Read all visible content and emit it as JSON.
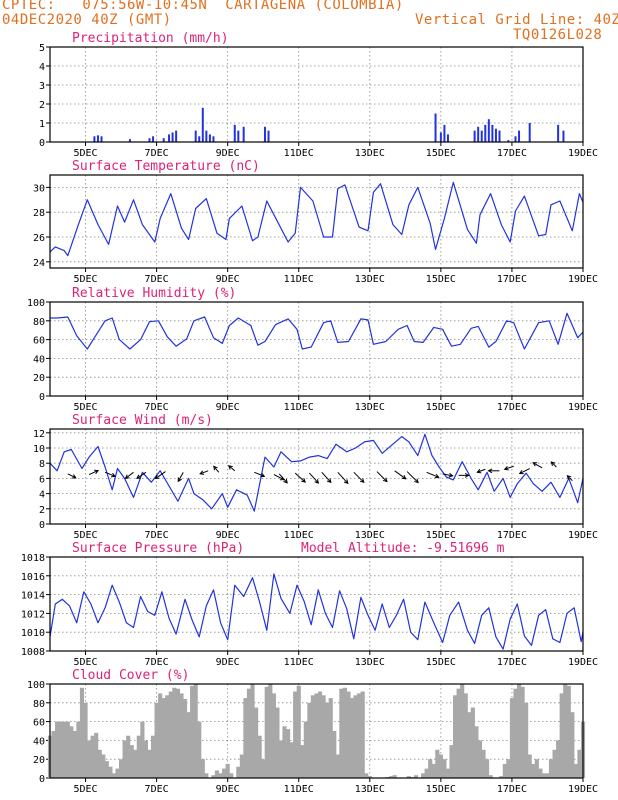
{
  "header": {
    "line1_left": "CPTEC:   075:56W-10:45N  CARTAGENA (COLOMBIA)",
    "line2_left": "04DEC2020 40Z (GMT)",
    "line2_right": "Vertical Grid Line: 40Z",
    "line3_right": "TQ0126L028"
  },
  "colors": {
    "header": "#e07020",
    "title": "#dd2277",
    "line": "#2233dd",
    "cloud": "#a8a8a8",
    "arrow": "#000000"
  },
  "x_ticks": [
    "5DEC",
    "7DEC",
    "9DEC",
    "11DEC",
    "13DEC",
    "15DEC",
    "17DEC",
    "19DEC"
  ],
  "chart_data": [
    {
      "type": "bar",
      "title": "Precipitation (mm/h)",
      "x_range_days": [
        4.0,
        19.0
      ],
      "ylim": [
        0,
        5
      ],
      "yticks": [
        0,
        1,
        2,
        3,
        4,
        5
      ],
      "bars": [
        [
          5.25,
          0.3
        ],
        [
          5.35,
          0.35
        ],
        [
          5.45,
          0.3
        ],
        [
          6.25,
          0.15
        ],
        [
          6.8,
          0.2
        ],
        [
          6.9,
          0.3
        ],
        [
          7.2,
          0.2
        ],
        [
          7.35,
          0.4
        ],
        [
          7.45,
          0.5
        ],
        [
          7.55,
          0.6
        ],
        [
          8.1,
          0.6
        ],
        [
          8.2,
          0.3
        ],
        [
          8.3,
          1.8
        ],
        [
          8.4,
          0.6
        ],
        [
          8.5,
          0.4
        ],
        [
          8.6,
          0.3
        ],
        [
          9.2,
          0.9
        ],
        [
          9.3,
          0.6
        ],
        [
          9.45,
          0.8
        ],
        [
          10.05,
          0.8
        ],
        [
          10.15,
          0.6
        ],
        [
          14.85,
          1.5
        ],
        [
          15.0,
          0.5
        ],
        [
          15.1,
          0.9
        ],
        [
          15.2,
          0.4
        ],
        [
          15.95,
          0.6
        ],
        [
          16.05,
          0.8
        ],
        [
          16.15,
          0.6
        ],
        [
          16.25,
          0.9
        ],
        [
          16.35,
          1.2
        ],
        [
          16.45,
          0.9
        ],
        [
          16.55,
          0.7
        ],
        [
          16.65,
          0.6
        ],
        [
          16.9,
          0.1
        ],
        [
          17.1,
          0.3
        ],
        [
          17.2,
          0.6
        ],
        [
          17.5,
          1.0
        ],
        [
          18.3,
          0.9
        ],
        [
          18.45,
          0.6
        ]
      ]
    },
    {
      "type": "line",
      "title": "Surface Temperature (nC)",
      "x_range_days": [
        4.0,
        19.0
      ],
      "ylim": [
        23.5,
        31
      ],
      "yticks": [
        24,
        26,
        28,
        30
      ],
      "x": [
        4.0,
        4.15,
        4.4,
        4.5,
        4.8,
        5.05,
        5.35,
        5.65,
        5.9,
        6.1,
        6.35,
        6.6,
        6.95,
        7.1,
        7.4,
        7.7,
        7.9,
        8.1,
        8.4,
        8.7,
        8.95,
        9.05,
        9.4,
        9.7,
        9.85,
        10.1,
        10.3,
        10.7,
        10.9,
        11.05,
        11.4,
        11.7,
        11.95,
        12.1,
        12.3,
        12.7,
        12.95,
        13.1,
        13.3,
        13.65,
        13.9,
        14.1,
        14.35,
        14.7,
        14.85,
        15.1,
        15.35,
        15.75,
        16.0,
        16.1,
        16.4,
        16.7,
        16.95,
        17.1,
        17.35,
        17.75,
        17.95,
        18.1,
        18.35,
        18.7,
        18.9,
        19.0
      ],
      "y": [
        24.8,
        25.2,
        24.9,
        24.5,
        27.0,
        29.0,
        27.0,
        25.4,
        28.5,
        27.2,
        29.0,
        27.0,
        25.6,
        27.5,
        29.5,
        26.7,
        25.8,
        28.3,
        29.1,
        26.3,
        25.8,
        27.5,
        28.5,
        25.7,
        26.0,
        28.9,
        27.8,
        25.6,
        26.3,
        30.0,
        28.9,
        26.0,
        26.0,
        29.9,
        30.2,
        26.8,
        26.5,
        29.6,
        30.3,
        27.0,
        26.2,
        28.6,
        30.0,
        27.1,
        25.0,
        27.5,
        30.4,
        26.6,
        25.5,
        27.8,
        29.5,
        27.0,
        25.6,
        28.1,
        29.3,
        26.1,
        26.2,
        28.6,
        28.9,
        26.5,
        29.5,
        28.8
      ]
    },
    {
      "type": "line",
      "title": "Relative Humidity (%)",
      "x_range_days": [
        4.0,
        19.0
      ],
      "ylim": [
        0,
        100
      ],
      "yticks": [
        0,
        20,
        40,
        60,
        80,
        100
      ],
      "x": [
        4.0,
        4.2,
        4.5,
        4.75,
        5.05,
        5.25,
        5.55,
        5.75,
        5.95,
        6.25,
        6.55,
        6.8,
        7.05,
        7.3,
        7.55,
        7.85,
        8.05,
        8.35,
        8.6,
        8.85,
        9.05,
        9.3,
        9.65,
        9.85,
        10.05,
        10.35,
        10.7,
        10.95,
        11.1,
        11.35,
        11.7,
        11.9,
        12.1,
        12.4,
        12.75,
        12.95,
        13.1,
        13.45,
        13.8,
        14.05,
        14.25,
        14.5,
        14.8,
        15.05,
        15.3,
        15.55,
        15.85,
        16.05,
        16.35,
        16.55,
        16.85,
        17.05,
        17.35,
        17.75,
        18.05,
        18.3,
        18.55,
        18.85,
        19.0
      ],
      "y": [
        83,
        83,
        84,
        64,
        50,
        62,
        80,
        83,
        60,
        50,
        60,
        79,
        80,
        63,
        53,
        61,
        80,
        84,
        62,
        56,
        75,
        83,
        75,
        54,
        58,
        76,
        82,
        71,
        50,
        52,
        78,
        80,
        57,
        58,
        82,
        81,
        55,
        58,
        71,
        75,
        58,
        57,
        73,
        71,
        53,
        55,
        72,
        74,
        52,
        58,
        80,
        78,
        50,
        78,
        80,
        55,
        88,
        62,
        68
      ]
    },
    {
      "type": "line",
      "title": "Surface Wind (m/s)",
      "x_range_days": [
        4.0,
        19.0
      ],
      "ylim": [
        0,
        12.5
      ],
      "yticks": [
        0,
        2,
        4,
        6,
        8,
        10,
        12
      ],
      "x": [
        4.0,
        4.2,
        4.4,
        4.6,
        4.9,
        5.1,
        5.35,
        5.55,
        5.75,
        5.9,
        6.1,
        6.35,
        6.6,
        6.85,
        7.1,
        7.35,
        7.6,
        7.9,
        8.05,
        8.3,
        8.55,
        8.85,
        9.0,
        9.25,
        9.55,
        9.75,
        10.05,
        10.3,
        10.5,
        10.8,
        11.05,
        11.3,
        11.55,
        11.8,
        12.05,
        12.35,
        12.6,
        12.85,
        13.1,
        13.35,
        13.6,
        13.9,
        14.1,
        14.35,
        14.55,
        14.75,
        14.95,
        15.15,
        15.35,
        15.6,
        15.85,
        16.05,
        16.3,
        16.5,
        16.75,
        16.95,
        17.15,
        17.4,
        17.6,
        17.85,
        18.1,
        18.35,
        18.6,
        18.85,
        19.0
      ],
      "y": [
        8.0,
        7.0,
        9.5,
        9.8,
        7.3,
        8.8,
        10.2,
        7.5,
        4.5,
        7.3,
        6.0,
        3.5,
        6.8,
        5.5,
        7.0,
        5.0,
        3.0,
        6.0,
        4.0,
        3.2,
        2.0,
        4.0,
        2.2,
        4.5,
        3.8,
        1.7,
        8.8,
        7.5,
        9.5,
        8.2,
        8.3,
        8.8,
        9.0,
        8.6,
        10.5,
        9.5,
        10.0,
        10.8,
        11.0,
        9.3,
        10.3,
        11.5,
        10.8,
        9.0,
        11.8,
        9.0,
        7.5,
        6.2,
        5.8,
        8.2,
        6.0,
        4.5,
        6.8,
        4.3,
        6.0,
        3.5,
        5.3,
        6.7,
        5.3,
        4.3,
        5.5,
        3.5,
        6.0,
        2.8,
        6.0
      ],
      "arrows": [
        [
          4.5,
          6.6,
          8,
          4
        ],
        [
          5.1,
          6.5,
          9,
          -4
        ],
        [
          5.55,
          6.8,
          10,
          4
        ],
        [
          6.35,
          6.8,
          -8,
          6
        ],
        [
          6.7,
          6.8,
          -9,
          6
        ],
        [
          7.25,
          6.9,
          -10,
          7
        ],
        [
          7.75,
          6.8,
          -5,
          9
        ],
        [
          8.45,
          7.0,
          -8,
          3
        ],
        [
          8.75,
          6.8,
          -5,
          -6
        ],
        [
          9.2,
          7.0,
          -6,
          -5
        ],
        [
          9.75,
          6.8,
          10,
          4
        ],
        [
          10.3,
          6.5,
          10,
          5
        ],
        [
          10.45,
          6.6,
          8,
          9
        ],
        [
          10.9,
          6.7,
          10,
          9
        ],
        [
          11.3,
          6.7,
          9,
          10
        ],
        [
          11.65,
          6.8,
          9,
          10
        ],
        [
          12.1,
          6.8,
          10,
          11
        ],
        [
          12.55,
          6.8,
          10,
          10
        ],
        [
          13.2,
          6.9,
          10,
          10
        ],
        [
          13.7,
          7.0,
          11,
          8
        ],
        [
          14.05,
          6.9,
          11,
          11
        ],
        [
          14.6,
          6.8,
          12,
          5
        ],
        [
          15.05,
          6.6,
          10,
          2
        ],
        [
          15.5,
          6.4,
          10,
          0
        ],
        [
          16.25,
          7.2,
          -8,
          3
        ],
        [
          16.65,
          7.0,
          -11,
          0
        ],
        [
          17.05,
          7.6,
          -9,
          3
        ],
        [
          17.5,
          7.3,
          -10,
          5
        ],
        [
          17.85,
          7.4,
          -9,
          -5
        ],
        [
          18.25,
          7.5,
          -5,
          -5
        ],
        [
          18.7,
          5.7,
          -5,
          -5
        ]
      ]
    },
    {
      "type": "line",
      "title": "Surface Pressure (hPa)",
      "annotation": "Model Altitude: -9.51696 m",
      "x_range_days": [
        4.0,
        19.0
      ],
      "ylim": [
        1008,
        1018
      ],
      "yticks": [
        1008,
        1010,
        1012,
        1014,
        1016,
        1018
      ],
      "x": [
        4.0,
        4.15,
        4.35,
        4.55,
        4.75,
        4.95,
        5.15,
        5.35,
        5.55,
        5.75,
        5.95,
        6.15,
        6.35,
        6.55,
        6.75,
        6.95,
        7.15,
        7.35,
        7.55,
        7.8,
        8.0,
        8.2,
        8.4,
        8.6,
        8.8,
        9.0,
        9.2,
        9.45,
        9.7,
        9.9,
        10.1,
        10.3,
        10.5,
        10.75,
        10.95,
        11.15,
        11.35,
        11.55,
        11.75,
        11.95,
        12.15,
        12.35,
        12.55,
        12.75,
        12.95,
        13.15,
        13.35,
        13.55,
        13.75,
        13.95,
        14.15,
        14.35,
        14.55,
        14.8,
        15.05,
        15.25,
        15.5,
        15.75,
        15.95,
        16.15,
        16.35,
        16.55,
        16.75,
        16.95,
        17.15,
        17.35,
        17.55,
        17.75,
        17.95,
        18.15,
        18.35,
        18.55,
        18.75,
        18.95,
        19.0
      ],
      "y": [
        1009.5,
        1013.0,
        1013.5,
        1012.8,
        1011.0,
        1014.3,
        1013.0,
        1011.0,
        1012.6,
        1015.0,
        1013.2,
        1011.0,
        1010.5,
        1013.8,
        1012.2,
        1011.8,
        1014.3,
        1011.5,
        1009.8,
        1013.5,
        1011.3,
        1009.5,
        1012.8,
        1014.5,
        1011.0,
        1009.2,
        1015.0,
        1013.8,
        1015.8,
        1013.2,
        1010.2,
        1016.2,
        1013.6,
        1012.0,
        1015.0,
        1013.3,
        1010.8,
        1014.5,
        1012.0,
        1010.5,
        1014.4,
        1012.5,
        1009.3,
        1013.7,
        1011.8,
        1010.2,
        1013.0,
        1010.5,
        1011.8,
        1013.5,
        1010.0,
        1009.2,
        1013.2,
        1011.0,
        1008.9,
        1011.8,
        1013.2,
        1010.2,
        1008.8,
        1011.8,
        1012.6,
        1009.5,
        1008.2,
        1011.4,
        1013.0,
        1009.6,
        1008.6,
        1011.8,
        1012.4,
        1009.3,
        1008.9,
        1012.0,
        1012.6,
        1009.0,
        1010.0
      ]
    },
    {
      "type": "area",
      "title": "Cloud Cover (%)",
      "x_range_days": [
        4.0,
        19.0
      ],
      "ylim": [
        0,
        100
      ],
      "yticks": [
        0,
        20,
        40,
        60,
        80,
        100
      ],
      "x": [
        4.0,
        4.1,
        4.2,
        4.3,
        4.4,
        4.5,
        4.6,
        4.7,
        4.8,
        4.9,
        5.0,
        5.1,
        5.2,
        5.3,
        5.4,
        5.5,
        5.6,
        5.7,
        5.8,
        5.9,
        6.0,
        6.1,
        6.2,
        6.3,
        6.4,
        6.5,
        6.6,
        6.7,
        6.8,
        6.9,
        7.0,
        7.1,
        7.2,
        7.3,
        7.4,
        7.5,
        7.6,
        7.7,
        7.8,
        7.9,
        8.0,
        8.1,
        8.2,
        8.3,
        8.4,
        8.5,
        8.6,
        8.7,
        8.8,
        8.9,
        9.0,
        9.1,
        9.2,
        9.3,
        9.4,
        9.5,
        9.6,
        9.7,
        9.8,
        9.9,
        10.0,
        10.1,
        10.2,
        10.3,
        10.4,
        10.5,
        10.6,
        10.7,
        10.8,
        10.9,
        11.0,
        11.1,
        11.2,
        11.3,
        11.4,
        11.5,
        11.6,
        11.7,
        11.8,
        11.9,
        12.0,
        12.1,
        12.2,
        12.3,
        12.4,
        12.5,
        12.6,
        12.7,
        12.8,
        12.9,
        13.0,
        13.1,
        13.2,
        13.3,
        13.4,
        13.5,
        13.6,
        13.7,
        13.8,
        13.9,
        14.0,
        14.1,
        14.2,
        14.3,
        14.4,
        14.5,
        14.6,
        14.7,
        14.8,
        14.9,
        15.0,
        15.1,
        15.2,
        15.3,
        15.4,
        15.5,
        15.6,
        15.7,
        15.8,
        15.9,
        16.0,
        16.1,
        16.2,
        16.3,
        16.4,
        16.5,
        16.6,
        16.7,
        16.8,
        16.9,
        17.0,
        17.1,
        17.2,
        17.3,
        17.4,
        17.5,
        17.6,
        17.7,
        17.8,
        17.9,
        18.0,
        18.1,
        18.2,
        18.3,
        18.4,
        18.5,
        18.6,
        18.7,
        18.8,
        18.9,
        19.0
      ],
      "y": [
        45,
        50,
        60,
        60,
        60,
        60,
        55,
        50,
        60,
        96,
        80,
        40,
        45,
        48,
        30,
        25,
        18,
        12,
        5,
        10,
        20,
        40,
        45,
        35,
        30,
        45,
        60,
        40,
        30,
        45,
        80,
        90,
        85,
        88,
        92,
        96,
        95,
        90,
        84,
        70,
        98,
        100,
        60,
        20,
        5,
        0,
        3,
        8,
        5,
        10,
        15,
        5,
        0,
        12,
        25,
        85,
        95,
        100,
        75,
        45,
        20,
        97,
        100,
        90,
        75,
        40,
        55,
        52,
        38,
        92,
        98,
        35,
        60,
        80,
        88,
        90,
        92,
        88,
        80,
        85,
        50,
        25,
        95,
        96,
        92,
        85,
        88,
        90,
        92,
        5,
        2,
        0,
        0,
        0,
        0,
        1,
        2,
        3,
        0,
        0,
        0,
        2,
        1,
        3,
        0,
        5,
        10,
        20,
        15,
        30,
        25,
        20,
        10,
        35,
        88,
        95,
        100,
        90,
        70,
        75,
        55,
        40,
        30,
        20,
        3,
        0,
        0,
        2,
        15,
        20,
        85,
        95,
        100,
        97,
        80,
        25,
        15,
        20,
        10,
        5,
        5,
        20,
        30,
        40,
        90,
        100,
        98,
        70,
        15,
        30,
        60
      ]
    }
  ]
}
